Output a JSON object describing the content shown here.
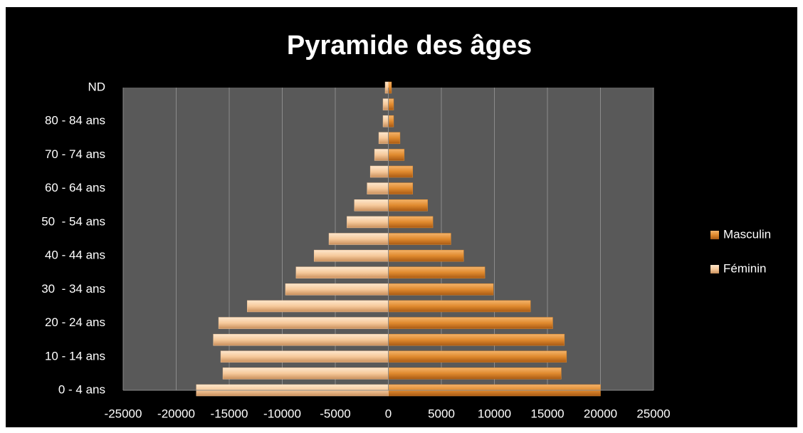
{
  "chart_data": {
    "type": "pyramid",
    "title": "Pyramide des âges",
    "categories": [
      "0 - 4 ans",
      null,
      "10 - 14 ans",
      null,
      "20 - 24 ans",
      null,
      "30  - 34 ans",
      null,
      "40 - 44 ans",
      null,
      "50  - 54 ans",
      null,
      "60 - 64 ans",
      null,
      "70 - 74 ans",
      null,
      "80 - 84 ans",
      null,
      "ND"
    ],
    "series": [
      {
        "name": "Masculin",
        "color": "#e08a2e",
        "values": [
          20000,
          16300,
          16800,
          16600,
          15500,
          13400,
          9900,
          9100,
          7100,
          5900,
          4200,
          3700,
          2300,
          2300,
          1500,
          1100,
          500,
          500,
          300
        ]
      },
      {
        "name": "Féminin",
        "color": "#f6c99b",
        "values": [
          -18100,
          -15600,
          -15800,
          -16500,
          -16000,
          -13300,
          -9700,
          -8700,
          -7000,
          -5600,
          -3900,
          -3200,
          -2000,
          -1700,
          -1300,
          -900,
          -500,
          -500,
          -300
        ]
      }
    ],
    "xlim": [
      -25000,
      25000
    ],
    "xticks": [
      -25000,
      -20000,
      -15000,
      -10000,
      -5000,
      0,
      5000,
      10000,
      15000,
      20000,
      25000
    ],
    "grid": true,
    "legend": "right"
  }
}
